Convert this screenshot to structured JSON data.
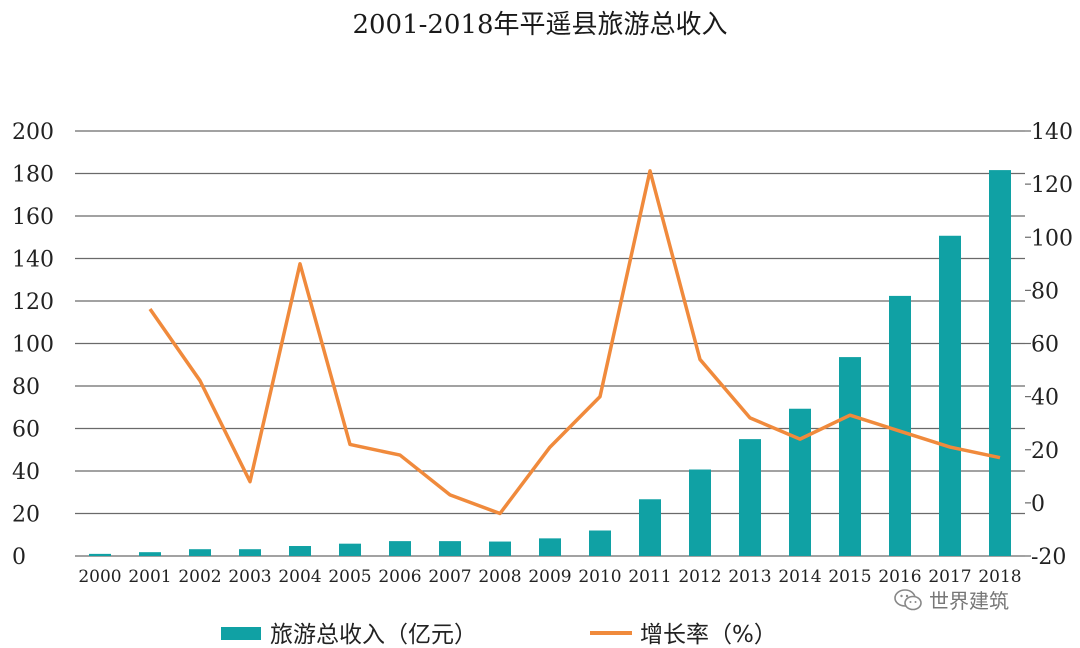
{
  "chart_data": {
    "type": "bar",
    "title": "2001-2018年平遥县旅游总收入",
    "categories": [
      "2000",
      "2001",
      "2002",
      "2003",
      "2004",
      "2005",
      "2006",
      "2007",
      "2008",
      "2009",
      "2010",
      "2011",
      "2012",
      "2013",
      "2014",
      "2015",
      "2016",
      "2017",
      "2018"
    ],
    "series": [
      {
        "name": "旅游总收入（亿元）",
        "type": "bar",
        "axis": "left",
        "color": "#10a1a4",
        "values": [
          1.0,
          1.8,
          3.2,
          3.2,
          4.7,
          5.8,
          7.0,
          7.0,
          6.8,
          8.3,
          12.0,
          26.7,
          40.7,
          55.0,
          69.3,
          93.6,
          122.4,
          150.7,
          181.6
        ]
      },
      {
        "name": "增长率（%）",
        "type": "line",
        "axis": "right",
        "color": "#f08a3c",
        "values": [
          null,
          73,
          46,
          8,
          90,
          22,
          18,
          3,
          -4,
          21,
          40,
          125,
          54,
          32,
          24,
          33,
          27,
          21,
          17
        ]
      }
    ],
    "y_left": {
      "ylim": [
        0,
        200
      ],
      "ticks": [
        0,
        20,
        40,
        60,
        80,
        100,
        120,
        140,
        160,
        180,
        200
      ]
    },
    "y_right": {
      "ylim": [
        -20,
        140
      ],
      "ticks": [
        -20,
        0,
        20,
        40,
        60,
        80,
        100,
        120,
        140
      ]
    },
    "grid": true,
    "legend": "bottom"
  },
  "watermark": {
    "text": "世界建筑",
    "icon": "wechat-icon"
  }
}
